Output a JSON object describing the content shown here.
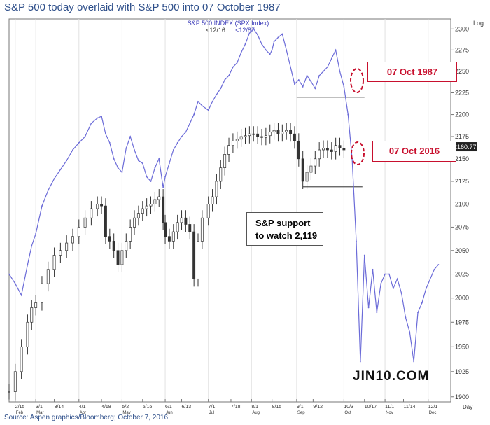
{
  "title": "S&P 500 today overlaid with S&P 500 into 07 October 1987",
  "source": "Source: Aspen graphics/Bloomberg; October 7, 2016",
  "watermark": "JIN10.COM",
  "annotations": {
    "callout_1987": "07 Oct 1987",
    "callout_2016": "07 Oct 2016",
    "support_line1": "S&P support",
    "support_line2": "to watch 2,119"
  },
  "colors": {
    "series_1987": "#6b6bd8",
    "series_2016": "#333333",
    "callout_red": "#c8102e",
    "title_blue": "#2e4f8a"
  },
  "chart_data": {
    "type": "line",
    "legend": {
      "title": "S&P 500  INDEX  (SPX Index)",
      "entries": [
        "<12/16",
        "<12/87"
      ]
    },
    "y_axis_label": "Log",
    "y_ticks": [
      1900,
      1925,
      1950,
      1975,
      2000,
      2025,
      2050,
      2075,
      2100,
      2125,
      2150,
      2175,
      2200,
      2225,
      2250,
      2275,
      2300
    ],
    "ylim": [
      1895,
      2312
    ],
    "last_value_label": "2160.77",
    "x_axis_label": "Day",
    "x_ticks": [
      {
        "label": "2/15",
        "x": 0
      },
      {
        "label": "3/1",
        "x": 10
      },
      {
        "label": "3/14",
        "x": 19
      },
      {
        "label": "4/1",
        "x": 31
      },
      {
        "label": "4/18",
        "x": 42
      },
      {
        "label": "5/2",
        "x": 52
      },
      {
        "label": "5/16",
        "x": 62
      },
      {
        "label": "6/1",
        "x": 73
      },
      {
        "label": "6/13",
        "x": 81
      },
      {
        "label": "7/1",
        "x": 94
      },
      {
        "label": "7/18",
        "x": 105
      },
      {
        "label": "8/1",
        "x": 115
      },
      {
        "label": "8/15",
        "x": 125
      },
      {
        "label": "9/1",
        "x": 137
      },
      {
        "label": "9/12",
        "x": 145
      },
      {
        "label": "10/3",
        "x": 160
      },
      {
        "label": "10/17",
        "x": 170
      },
      {
        "label": "11/1",
        "x": 180
      },
      {
        "label": "11/14",
        "x": 189
      },
      {
        "label": "12/1",
        "x": 201
      }
    ],
    "month_labels": [
      {
        "label": "Feb",
        "x": 0
      },
      {
        "label": "Mar",
        "x": 10
      },
      {
        "label": "Apr",
        "x": 31
      },
      {
        "label": "May",
        "x": 52
      },
      {
        "label": "Jun",
        "x": 73
      },
      {
        "label": "Jul",
        "x": 94
      },
      {
        "label": "Aug",
        "x": 115
      },
      {
        "label": "Sep",
        "x": 137
      },
      {
        "label": "Oct",
        "x": 160
      },
      {
        "label": "Nov",
        "x": 180
      },
      {
        "label": "Dec",
        "x": 201
      }
    ],
    "xlim": [
      -3,
      212
    ],
    "series": [
      {
        "name": "<12/87",
        "style": "line",
        "x": [
          -3,
          0,
          3,
          6,
          8,
          10,
          13,
          16,
          19,
          22,
          25,
          28,
          31,
          34,
          37,
          40,
          42,
          44,
          46,
          48,
          50,
          52,
          54,
          56,
          58,
          60,
          62,
          64,
          66,
          68,
          70,
          72,
          73,
          75,
          77,
          79,
          81,
          83,
          85,
          87,
          89,
          91,
          94,
          96,
          98,
          100,
          102,
          104,
          106,
          108,
          110,
          112,
          114,
          116,
          118,
          120,
          122,
          124,
          125,
          126,
          128,
          130,
          132,
          134,
          136,
          138,
          140,
          142,
          144,
          146,
          148,
          150,
          152,
          154,
          156,
          158,
          160,
          162,
          164,
          166,
          168,
          170,
          172,
          174,
          176,
          178,
          180,
          182,
          184,
          186,
          188,
          190,
          192,
          194,
          196,
          198,
          200,
          202,
          204,
          206
        ],
        "values": [
          2025,
          2015,
          2003,
          2035,
          2055,
          2068,
          2098,
          2115,
          2128,
          2138,
          2148,
          2160,
          2168,
          2175,
          2190,
          2196,
          2198,
          2178,
          2168,
          2150,
          2140,
          2135,
          2162,
          2175,
          2160,
          2148,
          2145,
          2130,
          2125,
          2140,
          2150,
          2118,
          2130,
          2145,
          2160,
          2168,
          2175,
          2180,
          2190,
          2200,
          2215,
          2210,
          2205,
          2215,
          2223,
          2230,
          2240,
          2245,
          2255,
          2260,
          2272,
          2282,
          2295,
          2300,
          2293,
          2282,
          2275,
          2270,
          2275,
          2285,
          2290,
          2294,
          2275,
          2255,
          2235,
          2240,
          2232,
          2245,
          2238,
          2230,
          2245,
          2250,
          2255,
          2265,
          2275,
          2250,
          2232,
          2200,
          2150,
          2060,
          1935,
          2045,
          1990,
          2030,
          1985,
          2015,
          2025,
          2025,
          2010,
          2020,
          2005,
          1980,
          1965,
          1935,
          1985,
          1995,
          2010,
          2020,
          2030,
          2035
        ]
      },
      {
        "name": "<12/16",
        "style": "ohlc",
        "x": [
          -3,
          0,
          3,
          6,
          8,
          10,
          13,
          16,
          19,
          22,
          25,
          28,
          31,
          34,
          37,
          40,
          42,
          44,
          46,
          48,
          50,
          52,
          54,
          56,
          58,
          60,
          62,
          64,
          66,
          68,
          70,
          72,
          73,
          75,
          77,
          79,
          81,
          83,
          85,
          87,
          89,
          91,
          94,
          96,
          98,
          100,
          102,
          104,
          106,
          108,
          110,
          112,
          114,
          116,
          118,
          120,
          122,
          124,
          126,
          128,
          130,
          132,
          134,
          136,
          138,
          140,
          142,
          144,
          146,
          148,
          150,
          152,
          154,
          156,
          158,
          160
        ],
        "values": [
          1905,
          1925,
          1950,
          1975,
          1990,
          1995,
          2015,
          2030,
          2045,
          2050,
          2058,
          2065,
          2075,
          2085,
          2095,
          2100,
          2098,
          2065,
          2060,
          2050,
          2035,
          2050,
          2060,
          2075,
          2085,
          2090,
          2095,
          2098,
          2100,
          2105,
          2108,
          2080,
          2065,
          2060,
          2070,
          2080,
          2085,
          2078,
          2070,
          2020,
          2060,
          2085,
          2100,
          2108,
          2125,
          2140,
          2155,
          2165,
          2170,
          2172,
          2175,
          2176,
          2178,
          2178,
          2175,
          2174,
          2176,
          2180,
          2182,
          2178,
          2180,
          2182,
          2178,
          2170,
          2150,
          2125,
          2135,
          2142,
          2150,
          2160,
          2162,
          2160,
          2158,
          2165,
          2162,
          2160
        ]
      }
    ],
    "reference_lines": [
      {
        "series": "<12/87",
        "value": 2220,
        "x_start": 137,
        "x_end": 170
      },
      {
        "series": "<12/16",
        "value": 2119,
        "x_start": 140,
        "x_end": 169
      }
    ]
  }
}
